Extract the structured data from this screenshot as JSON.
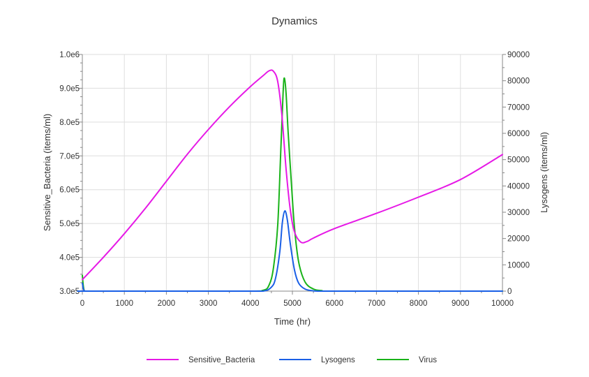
{
  "chart_data": {
    "type": "line",
    "title": "Dynamics",
    "xlabel": "Time (hr)",
    "ylabel_left": "Sensitive_Bacteria (items/ml)",
    "ylabel_right": "Lysogens (items/ml)",
    "xlim": [
      0,
      10000
    ],
    "ylim_left": [
      300000,
      1000000
    ],
    "ylim_right": [
      0,
      90000
    ],
    "grid": true,
    "legend_position": "bottom",
    "x_ticks": [
      0,
      1000,
      2000,
      3000,
      4000,
      5000,
      6000,
      7000,
      8000,
      9000,
      10000
    ],
    "x_tick_labels": [
      "0",
      "1000",
      "2000",
      "3000",
      "4000",
      "5000",
      "6000",
      "7000",
      "8000",
      "9000",
      "10000"
    ],
    "y_left_ticks": [
      300000,
      400000,
      500000,
      600000,
      700000,
      800000,
      900000,
      1000000
    ],
    "y_left_tick_labels": [
      "3.0e5",
      "4.0e5",
      "5.0e5",
      "6.0e5",
      "7.0e5",
      "8.0e5",
      "9.0e5",
      "1.0e6"
    ],
    "y_right_ticks": [
      0,
      10000,
      20000,
      30000,
      40000,
      50000,
      60000,
      70000,
      80000,
      90000
    ],
    "y_right_tick_labels": [
      "0",
      "10000",
      "20000",
      "30000",
      "40000",
      "50000",
      "60000",
      "70000",
      "80000",
      "90000"
    ],
    "series": [
      {
        "name": "Sensitive_Bacteria",
        "color": "#e619e6",
        "axis": "left",
        "x": [
          0,
          500,
          1000,
          1500,
          2000,
          2500,
          3000,
          3500,
          4000,
          4300,
          4450,
          4550,
          4650,
          4750,
          4850,
          4950,
          5050,
          5200,
          5350,
          5500,
          6000,
          7000,
          8000,
          9000,
          10000
        ],
        "values": [
          334000,
          400000,
          470000,
          545000,
          625000,
          705000,
          778000,
          845000,
          905000,
          937000,
          952000,
          950000,
          920000,
          820000,
          660000,
          540000,
          475000,
          445000,
          447000,
          457000,
          485000,
          530000,
          578000,
          630000,
          704000
        ]
      },
      {
        "name": "Lysogens",
        "color": "#1a5fe6",
        "axis": "right",
        "x": [
          0,
          50,
          200,
          3800,
          4300,
          4500,
          4600,
          4700,
          4760,
          4820,
          4880,
          4950,
          5050,
          5150,
          5300,
          5500,
          5700,
          6000,
          10000
        ],
        "values": [
          3000,
          0,
          0,
          0,
          0,
          1500,
          5000,
          15000,
          26000,
          30500,
          27000,
          18000,
          8000,
          3000,
          800,
          100,
          0,
          0,
          0
        ]
      },
      {
        "name": "Virus",
        "color": "#19b319",
        "axis": "right",
        "x": [
          0,
          50,
          200,
          3800,
          4300,
          4450,
          4550,
          4650,
          4720,
          4780,
          4810,
          4850,
          4900,
          4980,
          5050,
          5150,
          5300,
          5500,
          5700,
          6000,
          10000
        ],
        "values": [
          6000,
          0,
          0,
          0,
          300,
          2500,
          9000,
          25000,
          52000,
          76000,
          81000,
          75000,
          60000,
          40000,
          24000,
          11000,
          3500,
          800,
          200,
          0,
          0
        ]
      }
    ]
  }
}
